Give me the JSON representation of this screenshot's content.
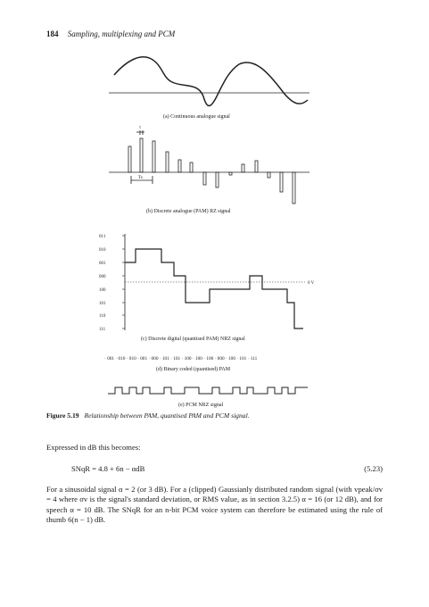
{
  "header": {
    "page_number": "184",
    "running_title": "Sampling, multiplexing and PCM"
  },
  "figure": {
    "panel_a_caption": "(a) Continuous analogue signal",
    "panel_b_caption": "(b) Discrete analogue (PAM) RZ signal",
    "panel_b_labels": {
      "pulse_width": "τ",
      "period": "Ts"
    },
    "panel_c_caption": "(c) Discrete digital (quantised PAM) NRZ signal",
    "panel_c_levels": [
      "011",
      "010",
      "001",
      "000",
      "100",
      "101",
      "110",
      "111"
    ],
    "panel_c_zero_label": "0 V",
    "panel_d_codes": "· 001 · 010 · 010 · 001 · 000 · 101 · 101 · 100 · 100 · 100 · 000 · 100 · 101 · 111",
    "panel_d_caption": "(d) Binary coded (quantised) PAM",
    "panel_e_caption": "(e) PCM NRZ signal",
    "caption_label": "Figure 5.19",
    "caption_text": "Relationship between PAM, quantised PAM and PCM signal."
  },
  "body": {
    "para1": "Expressed in dB this becomes:",
    "equation_lhs": "SNqR = 4.8 + 6n − αdB",
    "equation_number": "(5.23)",
    "para2": "For a sinusoidal signal α = 2 (or 3 dB). For a (clipped) Gaussianly distributed random signal (with vpeak/σv = 4 where σv is the signal's standard deviation, or RMS value, as in section 3.2.5) α = 16 (or 12 dB), and for speech α = 10 dB. The SNqR for an n-bit PCM voice system can therefore be estimated using the rule of thumb 6(n − 1) dB."
  }
}
